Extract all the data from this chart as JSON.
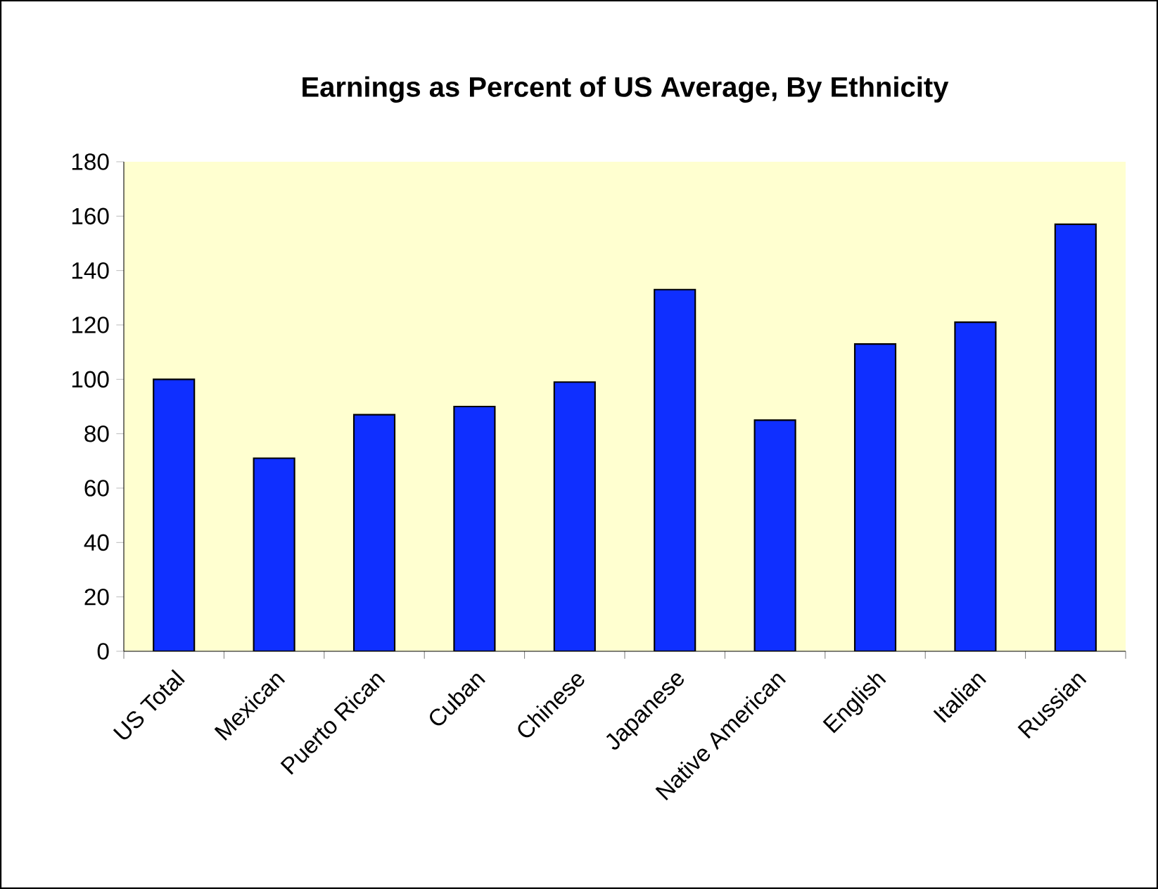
{
  "chart_data": {
    "type": "bar",
    "title": "Earnings as Percent of US Average, By Ethnicity",
    "categories": [
      "US Total",
      "Mexican",
      "Puerto Rican",
      "Cuban",
      "Chinese",
      "Japanese",
      "Native American",
      "English",
      "Italian",
      "Russian"
    ],
    "values": [
      100,
      71,
      87,
      90,
      99,
      133,
      85,
      113,
      121,
      157
    ],
    "color": "#0f2fff",
    "ylim": [
      0,
      180
    ],
    "yticks": [
      0,
      20,
      40,
      60,
      80,
      100,
      120,
      140,
      160,
      180
    ]
  }
}
